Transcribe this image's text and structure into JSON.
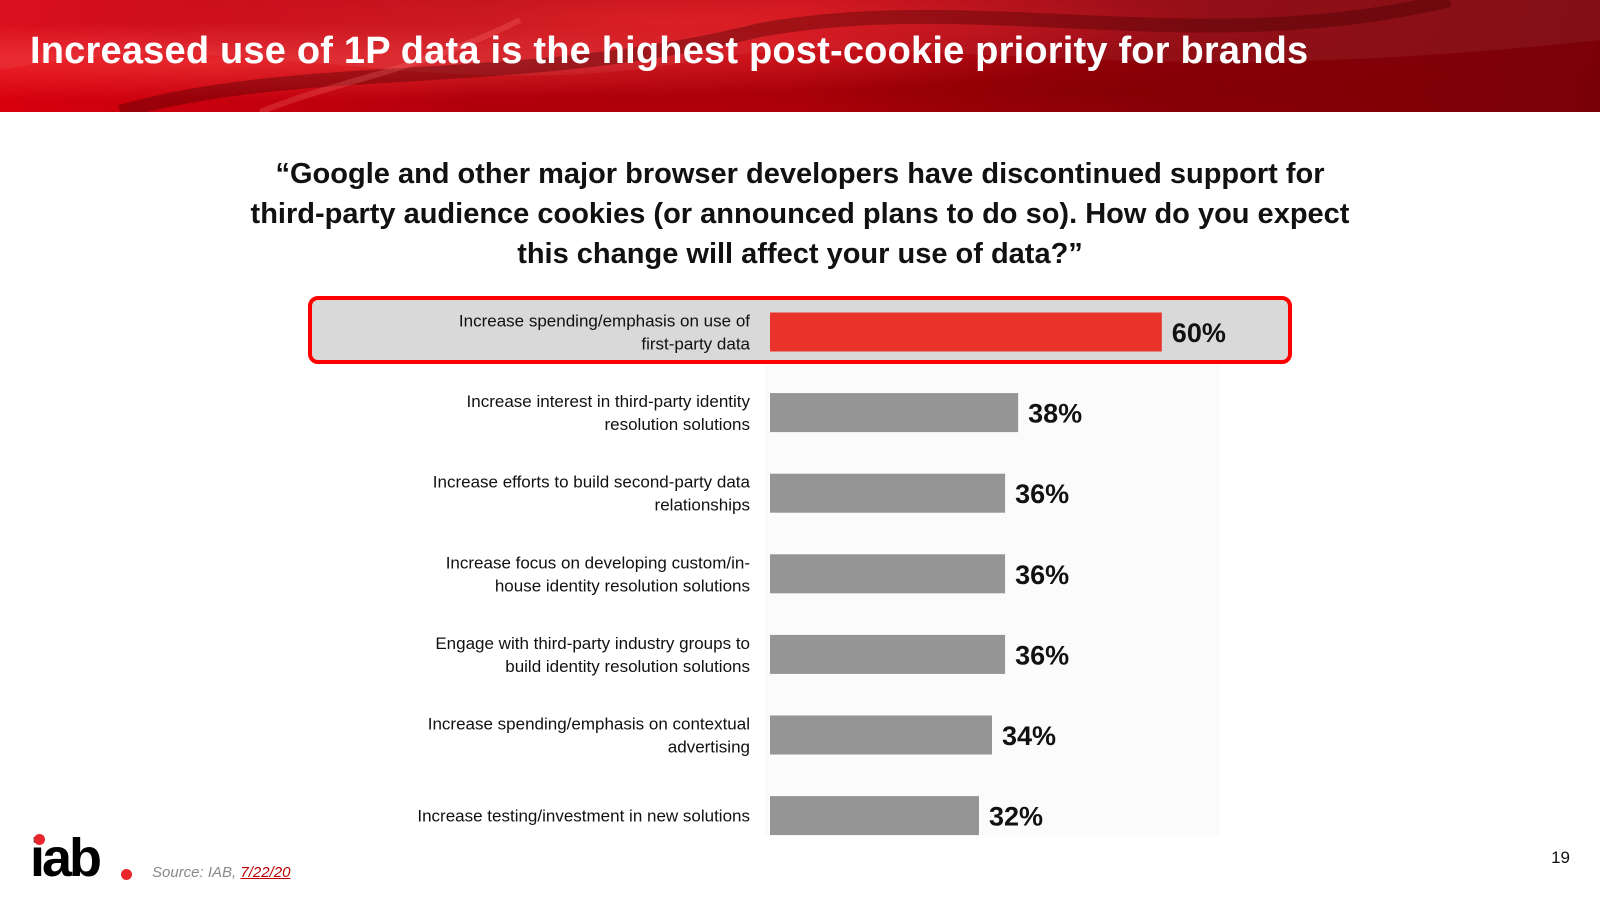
{
  "slide": {
    "title": "Increased use of 1P data is the highest post-cookie priority for brands",
    "question": "“Google and other major browser developers have discontinued support for third-party audience cookies (or announced plans to do so). How do you expect this change will affect your use of data?”",
    "page_number": "19"
  },
  "footer": {
    "logo_text": "iab",
    "source_prefix": "Source: IAB, ",
    "source_date": "7/22/20"
  },
  "colors": {
    "highlight_bar": "#e8322a",
    "default_bar": "#959595",
    "highlight_border": "#ff0000",
    "highlight_fill": "#d9d9d9",
    "header_red": "#c0000d",
    "logo_dot": "#e8262b"
  },
  "chart_data": {
    "type": "bar",
    "orientation": "horizontal",
    "highlighted_index": 0,
    "categories": [
      [
        "Increase spending/emphasis on use of",
        "first-party data"
      ],
      [
        "Increase interest in third-party identity",
        "resolution solutions"
      ],
      [
        "Increase efforts to build second-party data",
        "relationships"
      ],
      [
        "Increase focus on developing custom/in-",
        "house identity resolution solutions"
      ],
      [
        "Engage with third-party industry groups to",
        "build identity resolution solutions"
      ],
      [
        "Increase spending/emphasis on contextual",
        "advertising"
      ],
      [
        "Increase testing/investment in new solutions"
      ]
    ],
    "values": [
      60,
      38,
      36,
      36,
      36,
      34,
      32
    ],
    "value_labels": [
      "60%",
      "38%",
      "36%",
      "36%",
      "36%",
      "34%",
      "32%"
    ],
    "xlim": [
      0,
      100
    ],
    "unit": "%",
    "grid": false,
    "legend": "none"
  }
}
